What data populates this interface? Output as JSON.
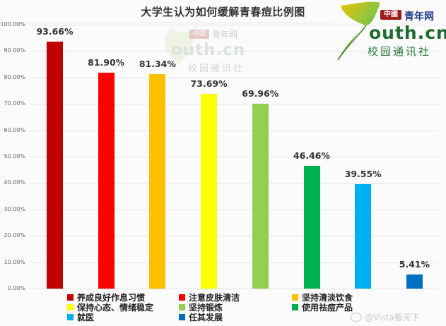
{
  "chart_data": {
    "type": "bar",
    "title": "大学生认为如何缓解青春痘比例图",
    "xlabel": "",
    "ylabel": "",
    "ylim": [
      0,
      100
    ],
    "grid": true,
    "legend_position": "bottom",
    "categories": [
      "养成良好作息习惯",
      "注意皮肤清洁",
      "坚持清淡饮食",
      "保持心态、情绪稳定",
      "坚持锻炼",
      "使用祛痘产品",
      "就医",
      "任其发展"
    ],
    "values": [
      93.66,
      81.9,
      81.34,
      73.69,
      69.96,
      46.46,
      39.55,
      5.41
    ],
    "value_labels": [
      "93.66%",
      "81.90%",
      "81.34%",
      "73.69%",
      "69.96%",
      "46.46%",
      "39.55%",
      "5.41%"
    ],
    "colors": [
      "#c00000",
      "#ff0000",
      "#ffc000",
      "#ffff00",
      "#92d050",
      "#00b050",
      "#00b0f0",
      "#0070c0"
    ],
    "yticks": [
      "0.00%",
      "10.00%",
      "20.00%",
      "30.00%",
      "40.00%",
      "50.00%",
      "60.00%",
      "70.00%",
      "80.00%",
      "90.00%",
      "100.00%"
    ]
  },
  "logo": {
    "badge": "中國",
    "name": "青年网",
    "domain": "outh.cn",
    "subtitle": "校园通讯社"
  },
  "watermark": {
    "text": "@Vista看天下"
  }
}
